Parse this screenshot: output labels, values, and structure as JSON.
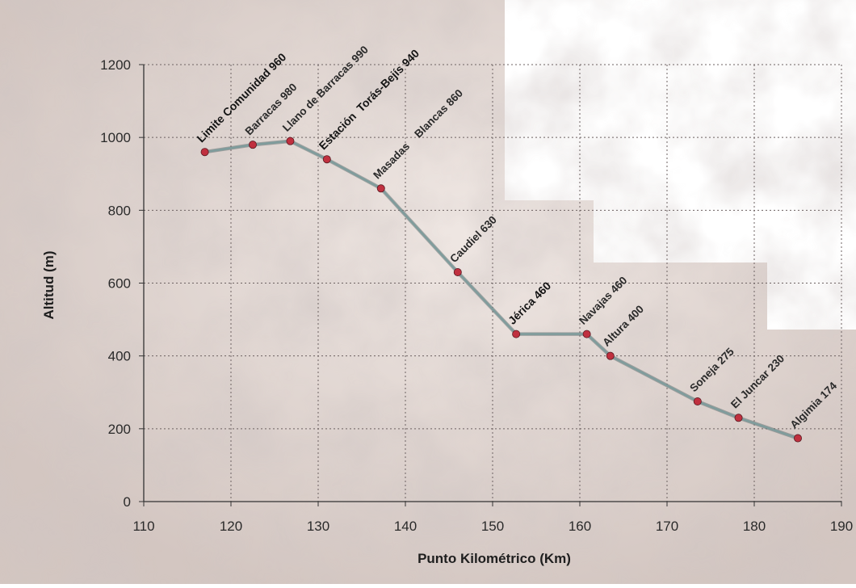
{
  "chart_data": {
    "type": "line",
    "title": "",
    "xlabel": "Punto Kilométrico (Km)",
    "ylabel": "Altitud (m)",
    "xlim": [
      110,
      190
    ],
    "ylim": [
      0,
      1200
    ],
    "x_ticks": [
      "110",
      "120",
      "130",
      "140",
      "150",
      "160",
      "170",
      "180",
      "190"
    ],
    "y_ticks": [
      "0",
      "200",
      "400",
      "600",
      "800",
      "1000",
      "1200"
    ],
    "grid": true,
    "line_color": "#7f9c9c",
    "marker_color": "#c0303f",
    "series": [
      {
        "points": [
          {
            "x": 117,
            "y": 960,
            "label": "Limite Comunidad 960",
            "major": true
          },
          {
            "x": 122.5,
            "y": 980,
            "label": "Barracas 980",
            "major": false
          },
          {
            "x": 126.8,
            "y": 990,
            "label": "Llano de Barracas 990",
            "major": false
          },
          {
            "x": 131,
            "y": 940,
            "label": "Estación  Torás-Bejís 940",
            "major": true
          },
          {
            "x": 137.2,
            "y": 860,
            "label": "Masadas    Blancas 860",
            "major": false
          },
          {
            "x": 146,
            "y": 630,
            "label": "Caudiel 630",
            "major": false
          },
          {
            "x": 152.7,
            "y": 460,
            "label": "Jérica 460",
            "major": true
          },
          {
            "x": 160.8,
            "y": 460,
            "label": "Navajas 460",
            "major": false
          },
          {
            "x": 163.5,
            "y": 400,
            "label": "Altura 400",
            "major": false
          },
          {
            "x": 173.5,
            "y": 275,
            "label": "Soneja 275",
            "major": false
          },
          {
            "x": 178.2,
            "y": 230,
            "label": "El Juncar 230",
            "major": false
          },
          {
            "x": 185,
            "y": 174,
            "label": "Algimia 174",
            "major": false
          }
        ]
      }
    ]
  }
}
